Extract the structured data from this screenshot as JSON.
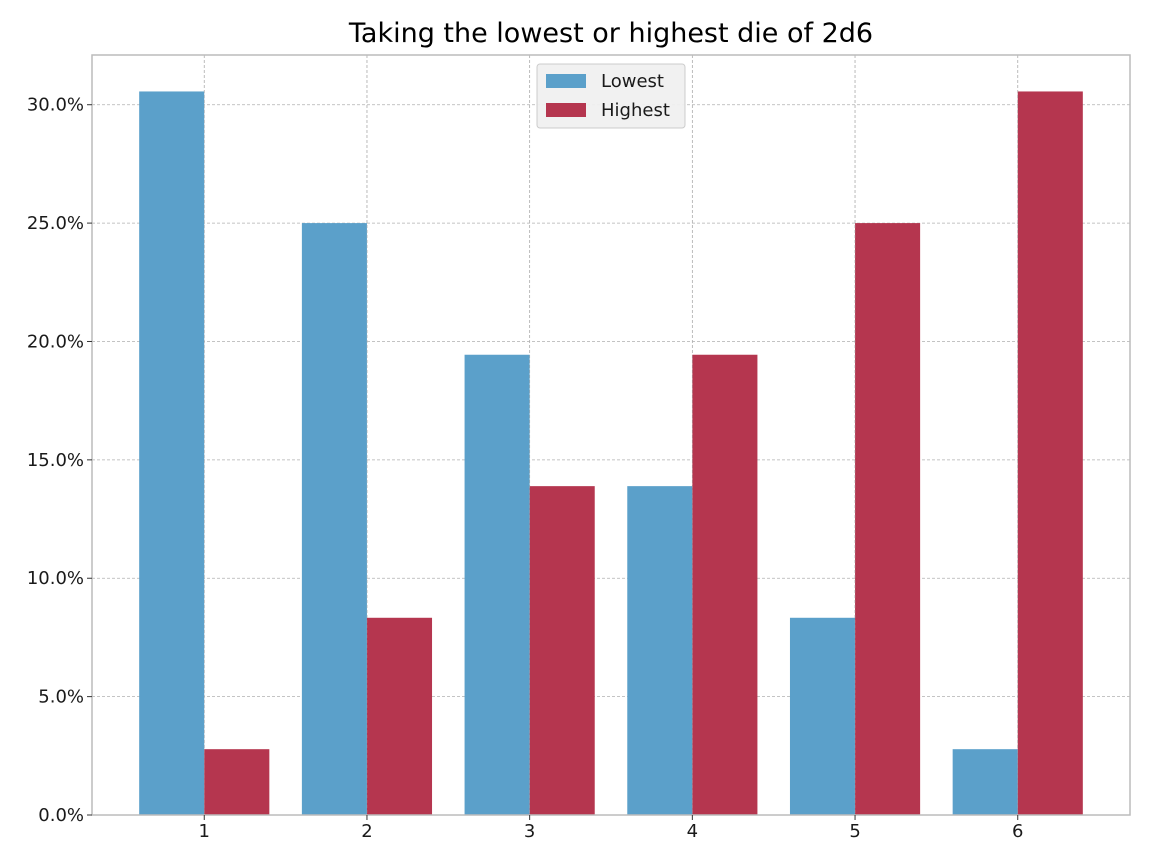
{
  "chart_data": {
    "type": "bar",
    "title": "Taking the lowest or highest die of 2d6",
    "xlabel": "",
    "ylabel": "",
    "categories": [
      "1",
      "2",
      "3",
      "4",
      "5",
      "6"
    ],
    "series": [
      {
        "name": "Lowest",
        "color": "#5ba0ca",
        "values": [
          30.56,
          25.0,
          19.44,
          13.89,
          8.33,
          2.78
        ]
      },
      {
        "name": "Highest",
        "color": "#b5364f",
        "values": [
          2.78,
          8.33,
          13.89,
          19.44,
          25.0,
          30.56
        ]
      }
    ],
    "ylim": [
      0,
      32.1
    ],
    "yticks": [
      {
        "value": 0,
        "label": "0.0%"
      },
      {
        "value": 5,
        "label": "5.0%"
      },
      {
        "value": 10,
        "label": "10.0%"
      },
      {
        "value": 15,
        "label": "15.0%"
      },
      {
        "value": 20,
        "label": "20.0%"
      },
      {
        "value": 25,
        "label": "25.0%"
      },
      {
        "value": 30,
        "label": "30.0%"
      }
    ],
    "grid": true,
    "legend_position": "top-center"
  }
}
